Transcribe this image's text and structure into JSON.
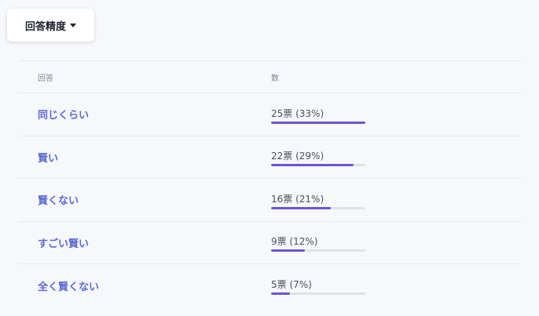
{
  "dropdown": {
    "label": "回答精度"
  },
  "table": {
    "headers": {
      "answer": "回答",
      "count": "数"
    },
    "bar_color": "#6a55d8",
    "rows": [
      {
        "answer": "同じくらい",
        "count_text": "25票 (33%)",
        "fraction": 1.0
      },
      {
        "answer": "賢い",
        "count_text": "22票 (29%)",
        "fraction": 0.875
      },
      {
        "answer": "賢くない",
        "count_text": "16票 (21%)",
        "fraction": 0.635
      },
      {
        "answer": "すごい賢い",
        "count_text": "9票 (12%)",
        "fraction": 0.36
      },
      {
        "answer": "全く賢くない",
        "count_text": "5票 (7%)",
        "fraction": 0.2
      }
    ]
  }
}
